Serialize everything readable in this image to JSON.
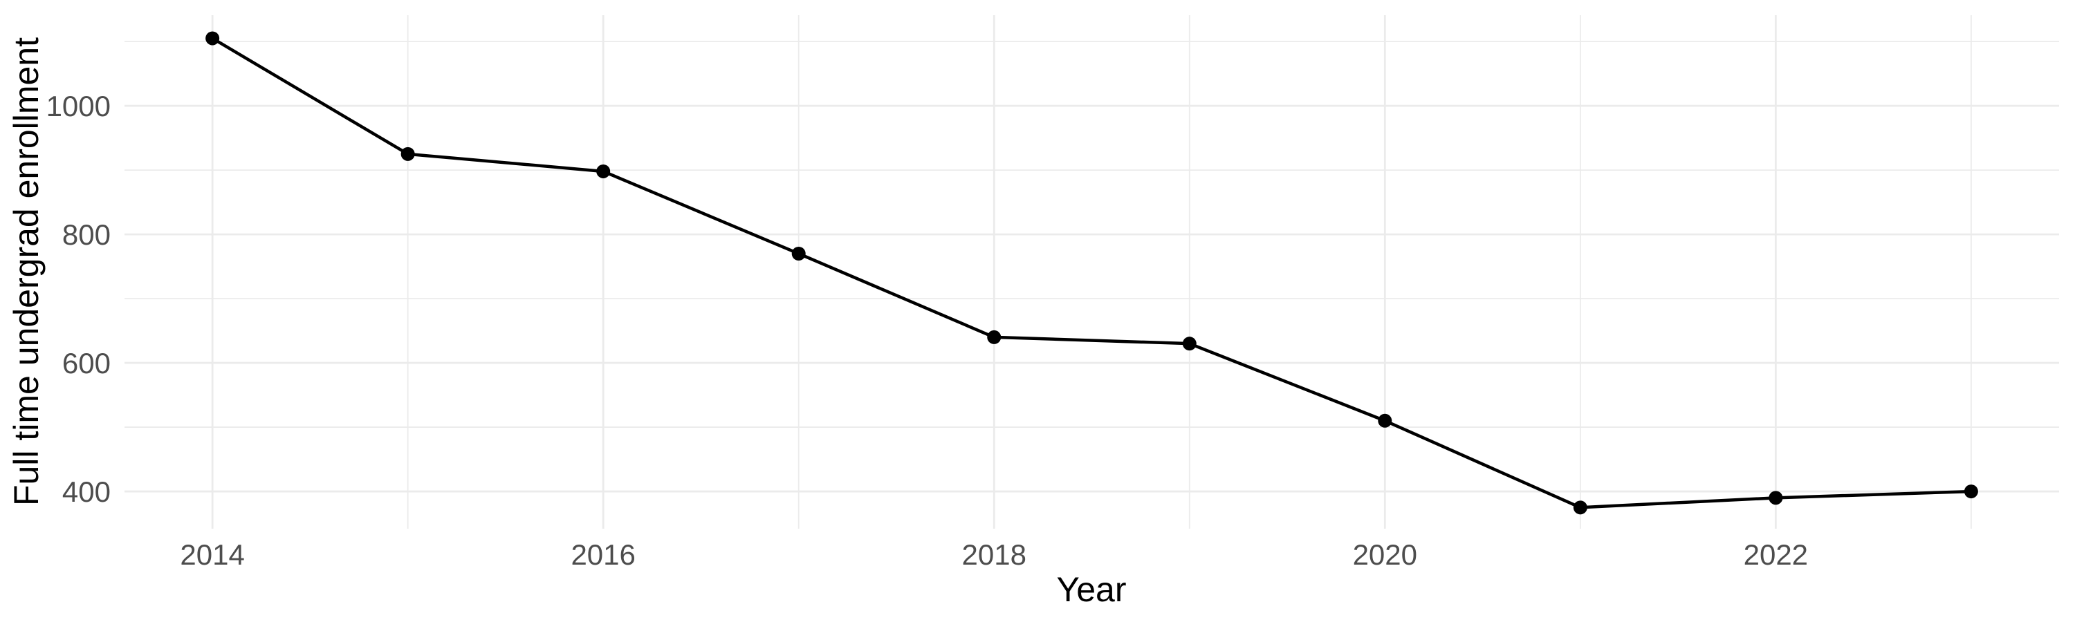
{
  "chart_data": {
    "type": "line",
    "title": "",
    "xlabel": "Year",
    "ylabel": "Full time undergrad enrollment",
    "x": [
      2014,
      2015,
      2016,
      2017,
      2018,
      2019,
      2020,
      2021,
      2022,
      2023
    ],
    "series": [
      {
        "name": "Full time undergrad enrollment",
        "values": [
          1105,
          925,
          898,
          770,
          640,
          630,
          510,
          375,
          390,
          400
        ]
      }
    ],
    "x_tick_labels": [
      2014,
      2016,
      2018,
      2020,
      2022
    ],
    "y_tick_labels": [
      400,
      600,
      800,
      1000
    ],
    "x_minor_gridlines": [
      2015,
      2017,
      2019,
      2021,
      2023
    ],
    "y_minor_gridlines": [
      500,
      700,
      900,
      1100
    ],
    "xlim": [
      2013.55,
      2023.45
    ],
    "ylim": [
      342,
      1141
    ],
    "grid": "major-and-minor",
    "legend_position": "none",
    "colors": {
      "line": "#000000",
      "points": "#000000",
      "gridline": "#EBEBEB",
      "tick_label": "#4D4D4D",
      "axis_title": "#000000",
      "background": "#FFFFFF"
    }
  }
}
